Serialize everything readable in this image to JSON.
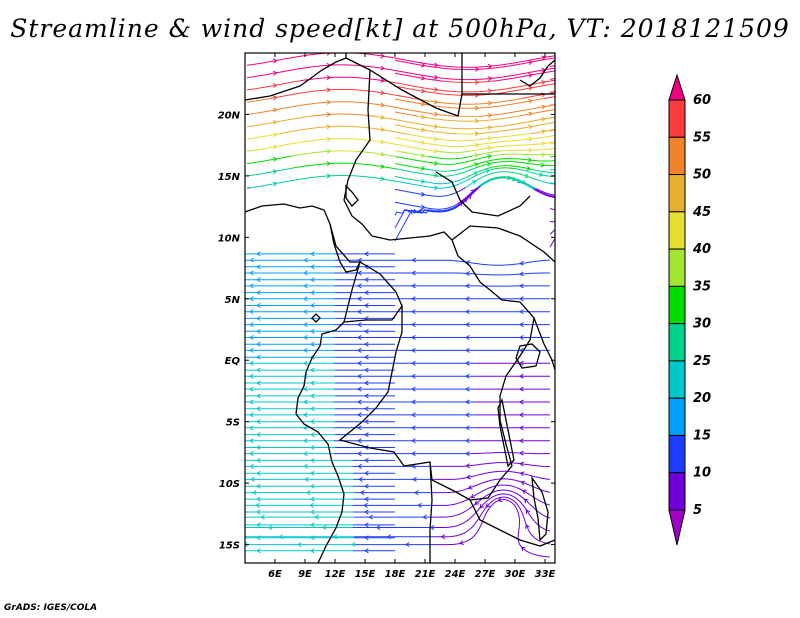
{
  "title": "Streamline & wind speed[kt] at 500hPa, VT: 2018121509",
  "credit": "GrADS: IGES/COLA",
  "map": {
    "lon_labels": [
      "6E",
      "9E",
      "12E",
      "15E",
      "18E",
      "21E",
      "24E",
      "27E",
      "30E",
      "33E"
    ],
    "lat_labels": [
      "20N",
      "15N",
      "10N",
      "5N",
      "EQ",
      "5S",
      "10S",
      "15S"
    ],
    "lon_range_deg": [
      3,
      34
    ],
    "lat_range_deg": [
      -16.5,
      25
    ]
  },
  "colorbar": {
    "labels": [
      "5",
      "10",
      "15",
      "20",
      "25",
      "30",
      "35",
      "40",
      "45",
      "50",
      "55",
      "60"
    ],
    "colors": [
      "#a000c8",
      "#6e00dc",
      "#1e3cff",
      "#00a0ff",
      "#00c8c8",
      "#00d28c",
      "#00dc00",
      "#a0e632",
      "#e6dc32",
      "#e6af2d",
      "#f08228",
      "#fa3c3c",
      "#f00082"
    ]
  }
}
